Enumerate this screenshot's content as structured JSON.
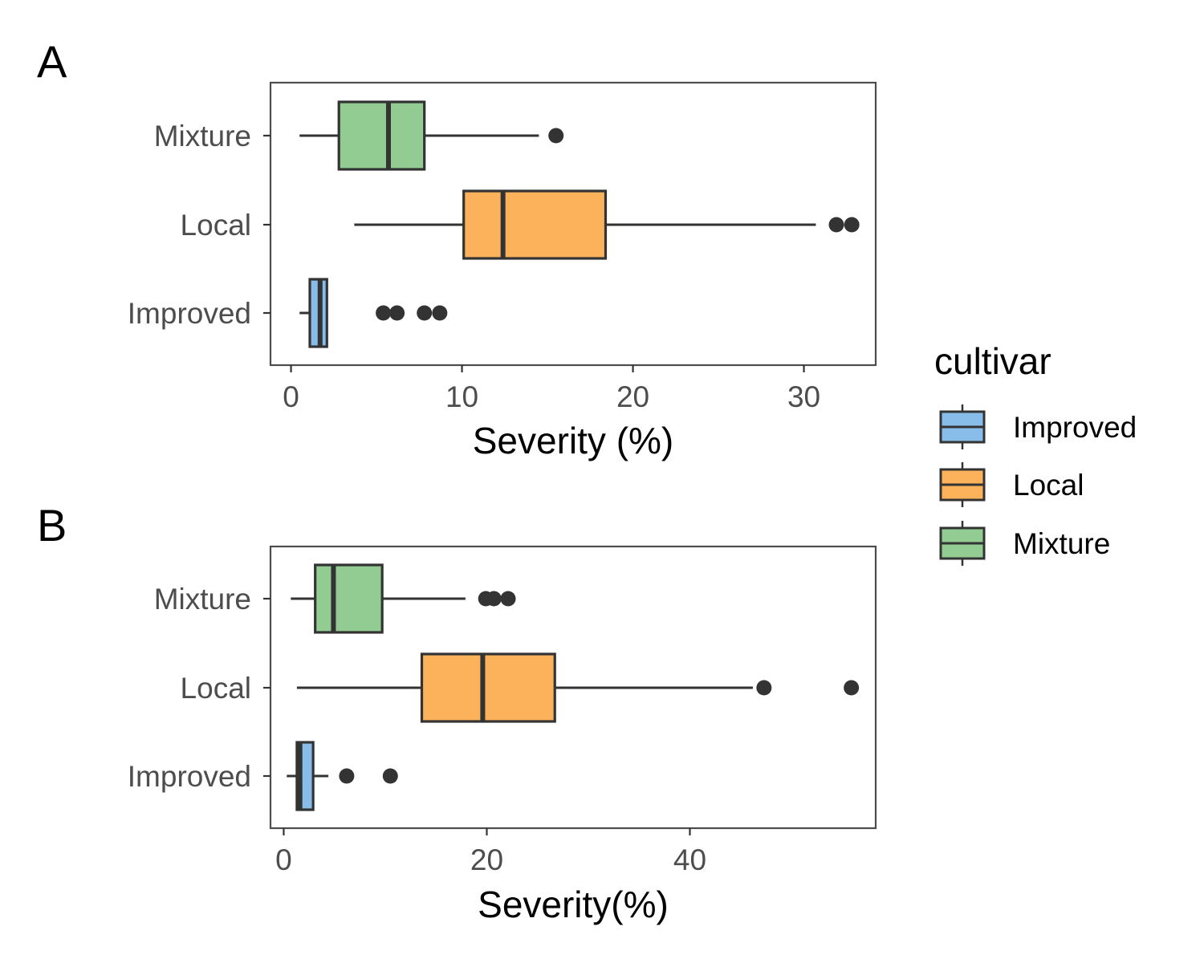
{
  "chart_data": [
    {
      "type": "boxplot",
      "panel_label": "A",
      "orientation": "horizontal",
      "xlabel": "Severity (%)",
      "ylabel": "",
      "xlim": [
        -1.2,
        34.2
      ],
      "xticks": [
        0,
        10,
        20,
        30
      ],
      "xtick_labels": [
        "0",
        "10",
        "20",
        "30"
      ],
      "categories": [
        "Mixture",
        "Local",
        "Improved"
      ],
      "series": [
        {
          "name": "Mixture",
          "whisker_low": 0.5,
          "q1": 2.8,
          "median": 5.7,
          "q3": 7.8,
          "whisker_high": 14.5,
          "outliers": [
            15.5
          ]
        },
        {
          "name": "Local",
          "whisker_low": 3.7,
          "q1": 10.1,
          "median": 12.4,
          "q3": 18.4,
          "whisker_high": 30.7,
          "outliers": [
            31.9,
            32.8
          ]
        },
        {
          "name": "Improved",
          "whisker_low": 0.5,
          "q1": 1.1,
          "median": 1.7,
          "q3": 2.1,
          "whisker_high": 2.1,
          "outliers": [
            5.4,
            6.2,
            7.8,
            8.7
          ]
        }
      ],
      "grid": false
    },
    {
      "type": "boxplot",
      "panel_label": "B",
      "orientation": "horizontal",
      "xlabel": "Severity(%)",
      "ylabel": "",
      "xlim": [
        -1.3,
        58.3
      ],
      "xticks": [
        0,
        20,
        40
      ],
      "xtick_labels": [
        "0",
        "20",
        "40"
      ],
      "categories": [
        "Mixture",
        "Local",
        "Improved"
      ],
      "series": [
        {
          "name": "Mixture",
          "whisker_low": 0.7,
          "q1": 3.1,
          "median": 4.9,
          "q3": 9.7,
          "whisker_high": 17.9,
          "outliers": [
            19.9,
            20.7,
            22.1
          ]
        },
        {
          "name": "Local",
          "whisker_low": 1.3,
          "q1": 13.6,
          "median": 19.6,
          "q3": 26.7,
          "whisker_high": 46.2,
          "outliers": [
            47.3,
            55.9
          ]
        },
        {
          "name": "Improved",
          "whisker_low": 0.3,
          "q1": 1.3,
          "median": 1.6,
          "q3": 2.9,
          "whisker_high": 4.4,
          "outliers": [
            6.2,
            10.5
          ]
        }
      ],
      "grid": false
    }
  ],
  "legend": {
    "title": "cultivar",
    "position": "right",
    "items": [
      {
        "label": "Improved",
        "color": "#87bde8"
      },
      {
        "label": "Local",
        "color": "#fbb25a"
      },
      {
        "label": "Mixture",
        "color": "#92cc92"
      }
    ]
  },
  "colors": {
    "Improved": "#87bde8",
    "Local": "#fbb25a",
    "Mixture": "#92cc92",
    "outline": "#333333",
    "panel_border": "#4d4d4d",
    "tick_text": "#4d4d4d"
  }
}
